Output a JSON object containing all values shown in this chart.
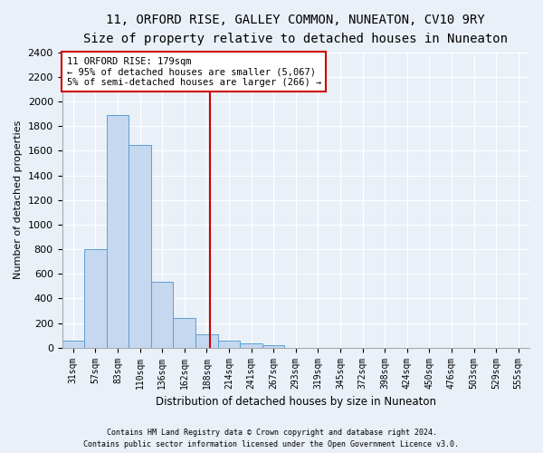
{
  "title1": "11, ORFORD RISE, GALLEY COMMON, NUNEATON, CV10 9RY",
  "title2": "Size of property relative to detached houses in Nuneaton",
  "xlabel": "Distribution of detached houses by size in Nuneaton",
  "ylabel": "Number of detached properties",
  "bar_labels": [
    "31sqm",
    "57sqm",
    "83sqm",
    "110sqm",
    "136sqm",
    "162sqm",
    "188sqm",
    "214sqm",
    "241sqm",
    "267sqm",
    "293sqm",
    "319sqm",
    "345sqm",
    "372sqm",
    "398sqm",
    "424sqm",
    "450sqm",
    "476sqm",
    "503sqm",
    "529sqm",
    "555sqm"
  ],
  "bar_values": [
    60,
    800,
    1890,
    1650,
    535,
    238,
    108,
    58,
    35,
    20,
    0,
    0,
    0,
    0,
    0,
    0,
    0,
    0,
    0,
    0,
    0
  ],
  "bar_color": "#c5d8f0",
  "bar_edge_color": "#5a9fd4",
  "vline_color": "#cc0000",
  "annotation_text": "11 ORFORD RISE: 179sqm\n← 95% of detached houses are smaller (5,067)\n5% of semi-detached houses are larger (266) →",
  "annotation_box_color": "#cc0000",
  "ylim": [
    0,
    2400
  ],
  "yticks": [
    0,
    200,
    400,
    600,
    800,
    1000,
    1200,
    1400,
    1600,
    1800,
    2000,
    2200,
    2400
  ],
  "footer1": "Contains HM Land Registry data © Crown copyright and database right 2024.",
  "footer2": "Contains public sector information licensed under the Open Government Licence v3.0.",
  "bg_color": "#eaf0f8",
  "plot_bg_color": "#eaf0f8",
  "title1_fontsize": 10,
  "title2_fontsize": 9,
  "grid_color": "#ffffff",
  "tick_label_fontsize": 7,
  "ylabel_fontsize": 8,
  "xlabel_fontsize": 8.5
}
